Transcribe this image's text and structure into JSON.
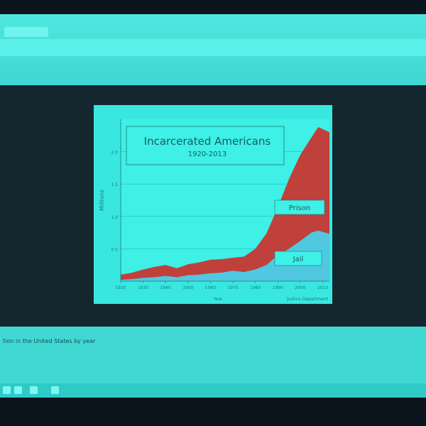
{
  "browser": {
    "tab_label": "",
    "bookmarks": []
  },
  "page": {
    "caption": "tion in the United States by year",
    "note": "",
    "footnote": ""
  },
  "colors": {
    "prison": "#c0403c",
    "jail": "#4fc8e0",
    "slide_bg": "#38e8e0"
  },
  "chart_data": {
    "type": "area",
    "title": "Incarcerated Americans",
    "subtitle": "1920-2013",
    "xlabel": "Year",
    "ylabel": "Millions",
    "source": "Justice Department",
    "xlim": [
      1920,
      2013
    ],
    "ylim": [
      0,
      2.5
    ],
    "x_ticks": [
      "1920",
      "1930",
      "1940",
      "1950",
      "1960",
      "1970",
      "1980",
      "1990",
      "2000",
      "2010"
    ],
    "y_ticks": [
      "0.5",
      "1.0",
      "1.5",
      "2.0"
    ],
    "grid": true,
    "x": [
      1920,
      1925,
      1930,
      1935,
      1940,
      1945,
      1950,
      1955,
      1960,
      1965,
      1970,
      1975,
      1980,
      1985,
      1990,
      1995,
      2000,
      2005,
      2008,
      2013
    ],
    "series": [
      {
        "name": "Jail",
        "values": [
          0.02,
          0.03,
          0.05,
          0.06,
          0.08,
          0.06,
          0.09,
          0.1,
          0.12,
          0.13,
          0.16,
          0.14,
          0.18,
          0.25,
          0.4,
          0.5,
          0.62,
          0.75,
          0.78,
          0.73
        ]
      },
      {
        "name": "Prison",
        "values": [
          0.08,
          0.1,
          0.13,
          0.16,
          0.17,
          0.14,
          0.17,
          0.19,
          0.21,
          0.21,
          0.2,
          0.24,
          0.32,
          0.49,
          0.74,
          1.08,
          1.33,
          1.47,
          1.6,
          1.57
        ]
      }
    ],
    "series_labels": {
      "prison": "Prison",
      "jail": "Jail"
    }
  }
}
